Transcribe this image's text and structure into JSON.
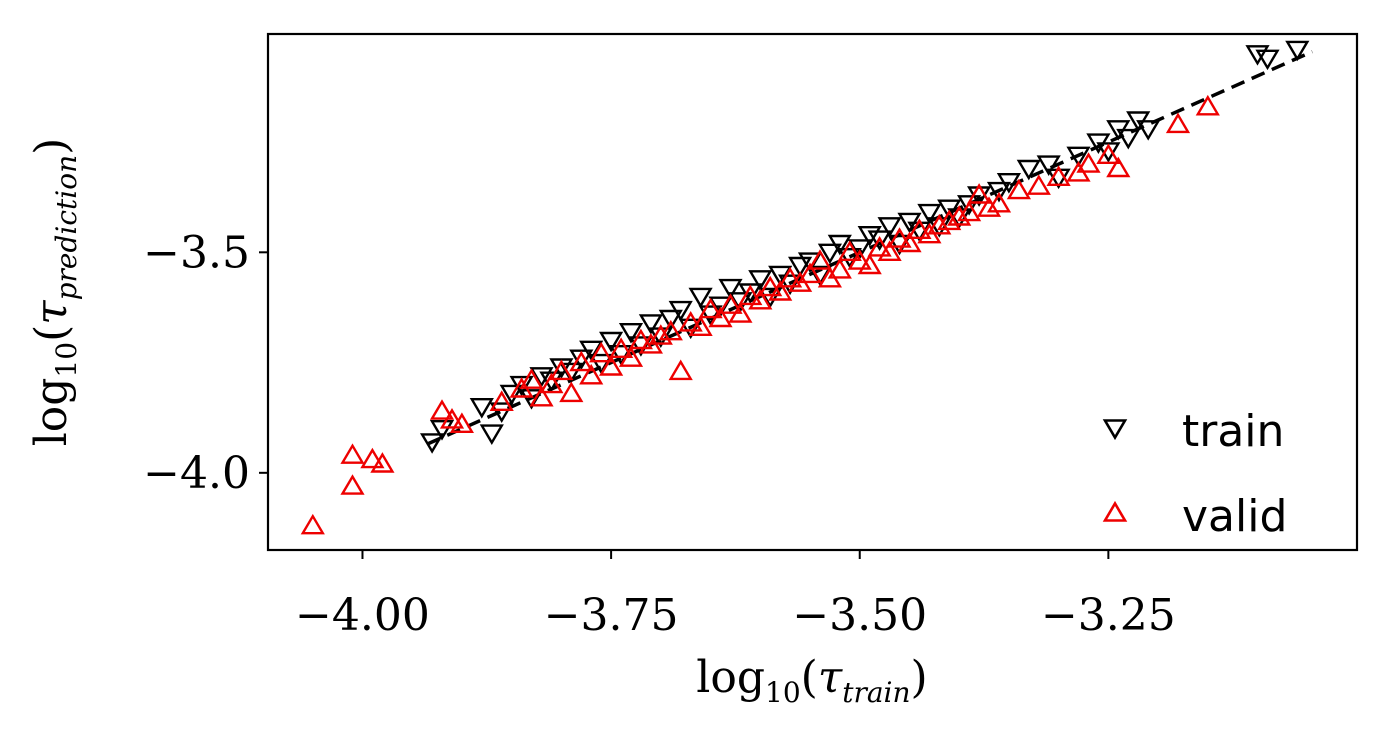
{
  "chart_data": {
    "type": "scatter",
    "title": "",
    "xlabel": {
      "base": "log",
      "sub": "10",
      "open": "(",
      "sym": "τ",
      "symsub": "train",
      "close": ")"
    },
    "ylabel": {
      "base": "log",
      "sub": "10",
      "open": "(",
      "sym": "τ",
      "symsub": "prediction",
      "close": ")"
    },
    "xlim": [
      -4.095,
      -3.0
    ],
    "ylim": [
      -4.175,
      -3.005
    ],
    "xticks": [
      -4.0,
      -3.75,
      -3.5,
      -3.25
    ],
    "xtick_labels": [
      "−4.00",
      "−3.75",
      "−3.50",
      "−3.25"
    ],
    "yticks": [
      -4.0,
      -3.5
    ],
    "ytick_labels": [
      "−4.0",
      "−3.5"
    ],
    "grid": false,
    "legend_position": "lower-right",
    "reference_line": {
      "style": "dashed",
      "color": "#000000",
      "x": [
        -3.935,
        -3.045
      ],
      "y": [
        -3.935,
        -3.045
      ]
    },
    "series": [
      {
        "name": "train",
        "marker": "triangle-down",
        "color": "#000000",
        "x": [
          -3.93,
          -3.92,
          -3.88,
          -3.87,
          -3.86,
          -3.85,
          -3.84,
          -3.83,
          -3.82,
          -3.81,
          -3.8,
          -3.79,
          -3.78,
          -3.77,
          -3.76,
          -3.75,
          -3.74,
          -3.73,
          -3.72,
          -3.71,
          -3.7,
          -3.69,
          -3.68,
          -3.67,
          -3.66,
          -3.65,
          -3.64,
          -3.63,
          -3.62,
          -3.61,
          -3.6,
          -3.59,
          -3.58,
          -3.57,
          -3.56,
          -3.55,
          -3.54,
          -3.53,
          -3.52,
          -3.51,
          -3.5,
          -3.49,
          -3.48,
          -3.47,
          -3.46,
          -3.45,
          -3.44,
          -3.43,
          -3.42,
          -3.41,
          -3.4,
          -3.39,
          -3.38,
          -3.36,
          -3.35,
          -3.33,
          -3.31,
          -3.3,
          -3.28,
          -3.26,
          -3.25,
          -3.24,
          -3.23,
          -3.22,
          -3.21,
          -3.1,
          -3.09,
          -3.06
        ],
        "y": [
          -3.93,
          -3.9,
          -3.85,
          -3.91,
          -3.86,
          -3.82,
          -3.8,
          -3.83,
          -3.78,
          -3.79,
          -3.76,
          -3.77,
          -3.74,
          -3.72,
          -3.75,
          -3.7,
          -3.73,
          -3.68,
          -3.71,
          -3.66,
          -3.69,
          -3.65,
          -3.63,
          -3.67,
          -3.6,
          -3.64,
          -3.62,
          -3.58,
          -3.61,
          -3.59,
          -3.56,
          -3.6,
          -3.55,
          -3.57,
          -3.53,
          -3.52,
          -3.55,
          -3.5,
          -3.48,
          -3.51,
          -3.49,
          -3.46,
          -3.47,
          -3.44,
          -3.48,
          -3.43,
          -3.45,
          -3.41,
          -3.44,
          -3.4,
          -3.42,
          -3.39,
          -3.37,
          -3.36,
          -3.34,
          -3.31,
          -3.3,
          -3.33,
          -3.28,
          -3.25,
          -3.27,
          -3.22,
          -3.24,
          -3.2,
          -3.22,
          -3.05,
          -3.06,
          -3.04
        ]
      },
      {
        "name": "valid",
        "marker": "triangle-up",
        "color": "#ee0000",
        "x": [
          -4.05,
          -4.01,
          -4.01,
          -3.99,
          -3.98,
          -3.92,
          -3.91,
          -3.9,
          -3.86,
          -3.84,
          -3.83,
          -3.82,
          -3.81,
          -3.8,
          -3.79,
          -3.78,
          -3.77,
          -3.76,
          -3.75,
          -3.74,
          -3.73,
          -3.72,
          -3.71,
          -3.7,
          -3.69,
          -3.68,
          -3.67,
          -3.66,
          -3.65,
          -3.64,
          -3.63,
          -3.62,
          -3.61,
          -3.6,
          -3.59,
          -3.58,
          -3.57,
          -3.56,
          -3.55,
          -3.54,
          -3.53,
          -3.52,
          -3.51,
          -3.5,
          -3.49,
          -3.48,
          -3.47,
          -3.46,
          -3.45,
          -3.44,
          -3.43,
          -3.42,
          -3.41,
          -3.4,
          -3.39,
          -3.38,
          -3.37,
          -3.36,
          -3.34,
          -3.32,
          -3.3,
          -3.28,
          -3.27,
          -3.25,
          -3.24,
          -3.18,
          -3.15
        ],
        "y": [
          -4.12,
          -4.03,
          -3.96,
          -3.97,
          -3.98,
          -3.86,
          -3.88,
          -3.89,
          -3.84,
          -3.81,
          -3.79,
          -3.83,
          -3.8,
          -3.77,
          -3.82,
          -3.75,
          -3.78,
          -3.73,
          -3.76,
          -3.72,
          -3.74,
          -3.7,
          -3.71,
          -3.69,
          -3.68,
          -3.77,
          -3.66,
          -3.67,
          -3.63,
          -3.65,
          -3.62,
          -3.64,
          -3.6,
          -3.61,
          -3.58,
          -3.59,
          -3.56,
          -3.57,
          -3.55,
          -3.52,
          -3.56,
          -3.54,
          -3.5,
          -3.52,
          -3.53,
          -3.49,
          -3.5,
          -3.47,
          -3.48,
          -3.45,
          -3.46,
          -3.44,
          -3.43,
          -3.42,
          -3.41,
          -3.37,
          -3.4,
          -3.39,
          -3.36,
          -3.35,
          -3.33,
          -3.32,
          -3.3,
          -3.28,
          -3.31,
          -3.21,
          -3.17
        ]
      }
    ]
  }
}
